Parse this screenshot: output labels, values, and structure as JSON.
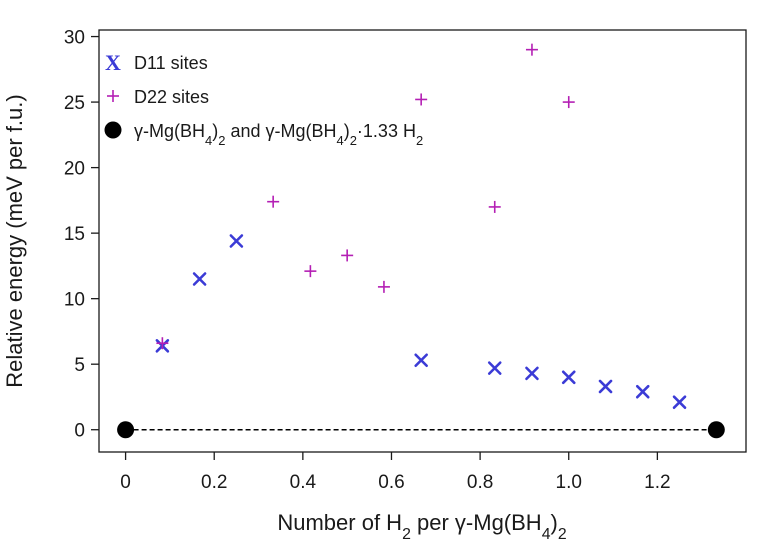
{
  "chart_data": {
    "type": "scatter",
    "xlabel": "Number of H₂ per γ-Mg(BH₄)₂",
    "ylabel": "Relative energy (meV per f.u.)",
    "xlim": [
      -0.06,
      1.4
    ],
    "ylim": [
      -1.7,
      30.5
    ],
    "xticks": [
      0,
      0.2,
      0.4,
      0.6,
      0.8,
      1.0,
      1.2
    ],
    "xtick_labels": [
      "0",
      "0.2",
      "0.4",
      "0.6",
      "0.8",
      "1.0",
      "1.2"
    ],
    "yticks": [
      0,
      5,
      10,
      15,
      20,
      25,
      30
    ],
    "ytick_labels": [
      "0",
      "5",
      "10",
      "15",
      "20",
      "25",
      "30"
    ],
    "grid": false,
    "legend_position": "top-left",
    "series": [
      {
        "name": "D11 sites",
        "marker": "x",
        "color": "#3b3bd6",
        "x": [
          0.083,
          0.167,
          0.25,
          0.667,
          0.833,
          0.917,
          1.0,
          1.083,
          1.167,
          1.25
        ],
        "y": [
          6.4,
          11.5,
          14.4,
          5.3,
          4.7,
          4.3,
          4.0,
          3.3,
          2.9,
          2.1
        ]
      },
      {
        "name": "D22 sites",
        "marker": "+",
        "color": "#b41fb4",
        "x": [
          0.083,
          0.333,
          0.417,
          0.5,
          0.583,
          0.667,
          0.833,
          0.917,
          1.0
        ],
        "y": [
          6.6,
          17.4,
          12.1,
          13.3,
          10.9,
          25.2,
          17.0,
          29.0,
          25.0
        ]
      },
      {
        "name": "γ-Mg(BH₄)₂ and γ-Mg(BH₄)₂·1.33 H₂",
        "marker": "circle",
        "color": "#000000",
        "x": [
          0,
          1.333
        ],
        "y": [
          0,
          0
        ]
      }
    ],
    "reference_line": {
      "style": "dashed",
      "color": "#000000",
      "x": [
        0,
        1.333
      ],
      "y": [
        0,
        0
      ]
    }
  }
}
